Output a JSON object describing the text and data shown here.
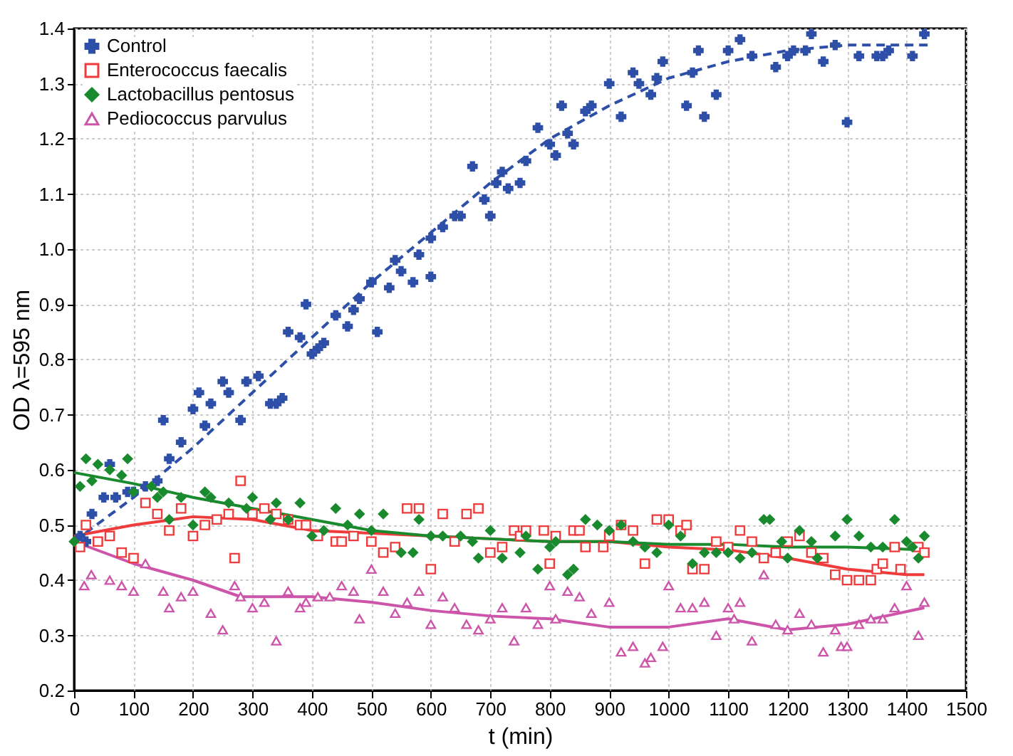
{
  "chart_data": {
    "type": "scatter",
    "xlabel": "t (min)",
    "ylabel": "OD λ=595 nm",
    "xlim": [
      0,
      1500
    ],
    "xticks": [
      0,
      100,
      200,
      300,
      400,
      500,
      600,
      700,
      800,
      900,
      1000,
      1100,
      1200,
      1300,
      1400,
      1500
    ],
    "ylim": [
      0.2,
      1.4
    ],
    "yticks": [
      0.2,
      0.3,
      0.4,
      0.5,
      0.6,
      0.7,
      0.8,
      0.9,
      {
        "value": 1.0,
        "label": "1.0"
      },
      1.1,
      1.2,
      1.3,
      1.4
    ],
    "grid": true,
    "legend": "top left",
    "series": [
      {
        "name": "Control",
        "type": "scatter",
        "marker": "cross",
        "color": "#2e4fa8",
        "x": [
          10,
          20,
          30,
          50,
          60,
          70,
          90,
          100,
          120,
          140,
          150,
          160,
          180,
          200,
          210,
          220,
          230,
          250,
          260,
          280,
          290,
          310,
          330,
          340,
          350,
          360,
          380,
          390,
          400,
          410,
          420,
          440,
          460,
          470,
          480,
          500,
          510,
          530,
          540,
          550,
          570,
          580,
          600,
          600,
          620,
          640,
          650,
          670,
          690,
          700,
          710,
          720,
          730,
          750,
          760,
          780,
          800,
          810,
          820,
          830,
          840,
          860,
          870,
          900,
          920,
          940,
          950,
          970,
          980,
          990,
          1030,
          1040,
          1050,
          1060,
          1080,
          1100,
          1120,
          1140,
          1180,
          1200,
          1210,
          1230,
          1240,
          1260,
          1280,
          1300,
          1320,
          1350,
          1360,
          1370,
          1410,
          1430
        ],
        "values": [
          0.48,
          0.47,
          0.52,
          0.55,
          0.61,
          0.55,
          0.56,
          0.56,
          0.57,
          0.58,
          0.69,
          0.62,
          0.65,
          0.71,
          0.74,
          0.68,
          0.72,
          0.76,
          0.74,
          0.69,
          0.76,
          0.77,
          0.72,
          0.72,
          0.73,
          0.85,
          0.84,
          0.9,
          0.81,
          0.82,
          0.83,
          0.88,
          0.86,
          0.89,
          0.91,
          0.94,
          0.85,
          0.93,
          0.98,
          0.96,
          0.94,
          0.99,
          0.95,
          1.02,
          1.04,
          1.06,
          1.06,
          1.15,
          1.09,
          1.06,
          1.12,
          1.14,
          1.11,
          1.12,
          1.16,
          1.22,
          1.19,
          1.17,
          1.26,
          1.21,
          1.19,
          1.25,
          1.26,
          1.3,
          1.24,
          1.32,
          1.3,
          1.28,
          1.31,
          1.34,
          1.26,
          1.32,
          1.36,
          1.24,
          1.28,
          1.36,
          1.38,
          1.35,
          1.33,
          1.35,
          1.36,
          1.36,
          1.39,
          1.34,
          1.37,
          1.23,
          1.35,
          1.35,
          1.35,
          1.36,
          1.35,
          1.39
        ]
      },
      {
        "name": "Enterococcus faecalis",
        "type": "scatter",
        "marker": "square",
        "color": "#ee3b3b",
        "x": [
          10,
          20,
          40,
          60,
          80,
          100,
          120,
          140,
          160,
          180,
          200,
          220,
          240,
          260,
          270,
          280,
          300,
          320,
          340,
          360,
          380,
          390,
          410,
          440,
          450,
          470,
          500,
          520,
          540,
          560,
          580,
          600,
          620,
          640,
          660,
          680,
          700,
          720,
          740,
          750,
          760,
          790,
          800,
          810,
          840,
          850,
          860,
          890,
          900,
          920,
          940,
          960,
          980,
          1000,
          1020,
          1030,
          1040,
          1060,
          1080,
          1100,
          1120,
          1140,
          1160,
          1180,
          1200,
          1220,
          1240,
          1260,
          1280,
          1300,
          1320,
          1340,
          1350,
          1360,
          1380,
          1390,
          1420,
          1430
        ],
        "values": [
          0.46,
          0.5,
          0.47,
          0.48,
          0.45,
          0.44,
          0.54,
          0.52,
          0.49,
          0.53,
          0.48,
          0.5,
          0.51,
          0.52,
          0.44,
          0.58,
          0.52,
          0.53,
          0.52,
          0.51,
          0.5,
          0.5,
          0.48,
          0.47,
          0.47,
          0.48,
          0.47,
          0.45,
          0.46,
          0.53,
          0.53,
          0.42,
          0.52,
          0.47,
          0.52,
          0.53,
          0.45,
          0.46,
          0.49,
          0.48,
          0.49,
          0.49,
          0.43,
          0.48,
          0.49,
          0.49,
          0.46,
          0.46,
          0.48,
          0.5,
          0.49,
          0.43,
          0.51,
          0.51,
          0.49,
          0.5,
          0.42,
          0.42,
          0.47,
          0.46,
          0.49,
          0.47,
          0.44,
          0.45,
          0.47,
          0.48,
          0.45,
          0.44,
          0.41,
          0.4,
          0.4,
          0.4,
          0.42,
          0.43,
          0.46,
          0.42,
          0.46,
          0.45
        ]
      },
      {
        "name": "Lactobacillus pentosus",
        "type": "scatter",
        "marker": "diamond",
        "color": "#1a8a2e",
        "x": [
          0,
          10,
          20,
          30,
          40,
          60,
          80,
          90,
          100,
          130,
          140,
          150,
          160,
          180,
          200,
          220,
          230,
          260,
          290,
          300,
          330,
          340,
          360,
          380,
          400,
          420,
          440,
          460,
          480,
          500,
          520,
          550,
          570,
          580,
          600,
          620,
          650,
          670,
          680,
          700,
          720,
          750,
          760,
          780,
          800,
          810,
          830,
          840,
          860,
          880,
          900,
          920,
          940,
          960,
          980,
          1000,
          1020,
          1040,
          1060,
          1080,
          1100,
          1120,
          1140,
          1160,
          1170,
          1190,
          1200,
          1220,
          1240,
          1250,
          1280,
          1300,
          1320,
          1340,
          1360,
          1380,
          1400,
          1410,
          1420,
          1430
        ],
        "values": [
          0.47,
          0.57,
          0.62,
          0.58,
          0.61,
          0.6,
          0.59,
          0.62,
          0.56,
          0.57,
          0.55,
          0.56,
          0.51,
          0.55,
          0.5,
          0.56,
          0.55,
          0.54,
          0.53,
          0.55,
          0.51,
          0.54,
          0.51,
          0.54,
          0.48,
          0.49,
          0.53,
          0.5,
          0.52,
          0.49,
          0.52,
          0.45,
          0.45,
          0.51,
          0.48,
          0.48,
          0.48,
          0.47,
          0.44,
          0.49,
          0.44,
          0.45,
          0.48,
          0.42,
          0.46,
          0.47,
          0.41,
          0.42,
          0.51,
          0.5,
          0.49,
          0.5,
          0.47,
          0.46,
          0.45,
          0.5,
          0.48,
          0.43,
          0.45,
          0.45,
          0.45,
          0.44,
          0.45,
          0.51,
          0.51,
          0.47,
          0.44,
          0.49,
          0.47,
          0.44,
          0.48,
          0.51,
          0.48,
          0.46,
          0.46,
          0.51,
          0.47,
          0.46,
          0.44,
          0.48
        ]
      },
      {
        "name": "Pediococcus parvulus",
        "type": "scatter",
        "marker": "triangle",
        "color": "#cc55aa",
        "x": [
          17,
          29,
          60,
          80,
          100,
          120,
          150,
          160,
          180,
          200,
          230,
          250,
          270,
          280,
          300,
          320,
          340,
          360,
          380,
          390,
          410,
          430,
          450,
          470,
          480,
          500,
          520,
          540,
          560,
          580,
          600,
          620,
          640,
          660,
          680,
          700,
          720,
          740,
          760,
          780,
          800,
          810,
          830,
          850,
          870,
          900,
          920,
          940,
          960,
          970,
          990,
          1000,
          1020,
          1040,
          1060,
          1080,
          1100,
          1110,
          1120,
          1140,
          1160,
          1180,
          1200,
          1220,
          1240,
          1260,
          1280,
          1290,
          1300,
          1320,
          1340,
          1360,
          1380,
          1400,
          1420,
          1430
        ],
        "values": [
          0.39,
          0.41,
          0.4,
          0.39,
          0.38,
          0.43,
          0.38,
          0.35,
          0.37,
          0.38,
          0.34,
          0.31,
          0.39,
          0.37,
          0.35,
          0.36,
          0.29,
          0.38,
          0.35,
          0.36,
          0.37,
          0.37,
          0.39,
          0.38,
          0.33,
          0.42,
          0.38,
          0.34,
          0.36,
          0.38,
          0.32,
          0.37,
          0.35,
          0.32,
          0.31,
          0.33,
          0.35,
          0.29,
          0.35,
          0.32,
          0.39,
          0.33,
          0.38,
          0.37,
          0.34,
          0.36,
          0.27,
          0.28,
          0.25,
          0.26,
          0.28,
          0.39,
          0.35,
          0.35,
          0.36,
          0.3,
          0.35,
          0.33,
          0.36,
          0.29,
          0.41,
          0.32,
          0.31,
          0.34,
          0.32,
          0.27,
          0.31,
          0.28,
          0.28,
          0.32,
          0.33,
          0.33,
          0.35,
          0.39,
          0.3,
          0.36
        ]
      },
      {
        "type": "line",
        "line_style": "dashed",
        "color": "#2e4fa8",
        "x": [
          0,
          100,
          200,
          300,
          400,
          500,
          600,
          700,
          800,
          900,
          1000,
          1100,
          1200,
          1300,
          1440
        ],
        "values": [
          0.47,
          0.55,
          0.64,
          0.74,
          0.84,
          0.94,
          1.03,
          1.12,
          1.2,
          1.26,
          1.31,
          1.34,
          1.36,
          1.37,
          1.37
        ]
      },
      {
        "type": "line",
        "line_style": "solid",
        "color": "#ee3b3b",
        "x": [
          0,
          100,
          200,
          300,
          400,
          500,
          600,
          700,
          800,
          900,
          1000,
          1100,
          1200,
          1300,
          1400,
          1430
        ],
        "values": [
          0.48,
          0.5,
          0.515,
          0.51,
          0.49,
          0.485,
          0.48,
          0.475,
          0.47,
          0.47,
          0.46,
          0.455,
          0.44,
          0.42,
          0.41,
          0.41
        ]
      },
      {
        "type": "line",
        "line_style": "solid",
        "color": "#1a8a2e",
        "x": [
          0,
          100,
          200,
          300,
          400,
          500,
          600,
          700,
          800,
          900,
          1000,
          1100,
          1200,
          1300,
          1430
        ],
        "values": [
          0.595,
          0.575,
          0.55,
          0.53,
          0.51,
          0.49,
          0.48,
          0.475,
          0.47,
          0.47,
          0.465,
          0.465,
          0.46,
          0.46,
          0.455
        ]
      },
      {
        "type": "line",
        "line_style": "solid",
        "color": "#cc55aa",
        "x": [
          0,
          100,
          200,
          280,
          400,
          500,
          600,
          700,
          800,
          900,
          1000,
          1100,
          1200,
          1300,
          1430
        ],
        "values": [
          0.47,
          0.43,
          0.4,
          0.37,
          0.37,
          0.36,
          0.345,
          0.335,
          0.33,
          0.315,
          0.315,
          0.33,
          0.31,
          0.32,
          0.35
        ]
      }
    ]
  }
}
